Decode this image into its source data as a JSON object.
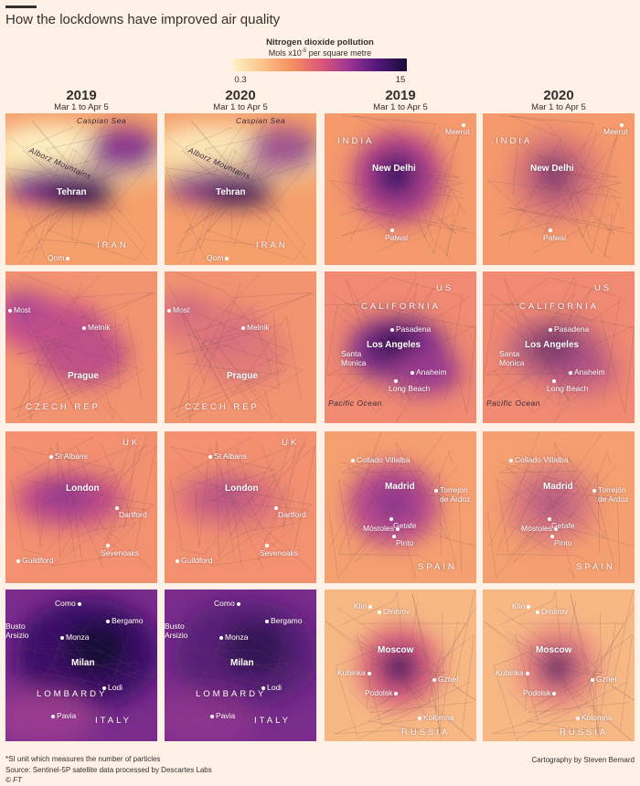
{
  "header": {
    "title": "How the lockdowns have improved air quality"
  },
  "legend": {
    "title": "Nitrogen dioxide pollution",
    "unit_before": "Mols x10",
    "unit_exponent": "-5",
    "unit_after": " per square metre",
    "min": 0.3,
    "max": 15
  },
  "columns": [
    {
      "year": "2019",
      "period": "Mar 1 to Apr 5"
    },
    {
      "year": "2020",
      "period": "Mar 1 to Apr 5"
    },
    {
      "year": "2019",
      "period": "Mar 1 to Apr 5"
    },
    {
      "year": "2020",
      "period": "Mar 1 to Apr 5"
    }
  ],
  "regions": [
    {
      "labels": [
        "Caspian Sea",
        "Alborz Mountains",
        "Tehran",
        "Qom",
        "IRAN"
      ]
    },
    {
      "labels": [
        "Meerut",
        "INDIA",
        "New Delhi",
        "Palwal"
      ]
    },
    {
      "labels": [
        "Most",
        "Melnik",
        "Prague",
        "CZECH REP"
      ]
    },
    {
      "labels": [
        "US",
        "CALIFORNIA",
        "Pasadena",
        "Los Angeles",
        "Santa Monica",
        "Anaheim",
        "Long Beach",
        "Pacific Ocean"
      ]
    },
    {
      "labels": [
        "UK",
        "St Albans",
        "London",
        "Dartford",
        "Sevenoaks",
        "Guildford"
      ]
    },
    {
      "labels": [
        "Collado Villalba",
        "Madrid",
        "Torrejón de Ardoz",
        "Móstoles",
        "Getafe",
        "Pinto",
        "SPAIN"
      ]
    },
    {
      "labels": [
        "Como",
        "Bergamo",
        "Busto Arsizio",
        "Monza",
        "Milan",
        "Lodi",
        "LOMBARDY",
        "Pavia",
        "ITALY"
      ]
    },
    {
      "labels": [
        "Klin",
        "Dmitrov",
        "Moscow",
        "Kubinka",
        "Gzhel",
        "Podolsk",
        "Kolomna",
        "RUSSIA"
      ]
    }
  ],
  "footer": {
    "note": "*SI unit which measures the number of particles",
    "source": "Source: Sentinel-5P satellite data processed by Descartes Labs",
    "copyright": "© FT",
    "credit": "Cartography by Steven Bernard"
  }
}
